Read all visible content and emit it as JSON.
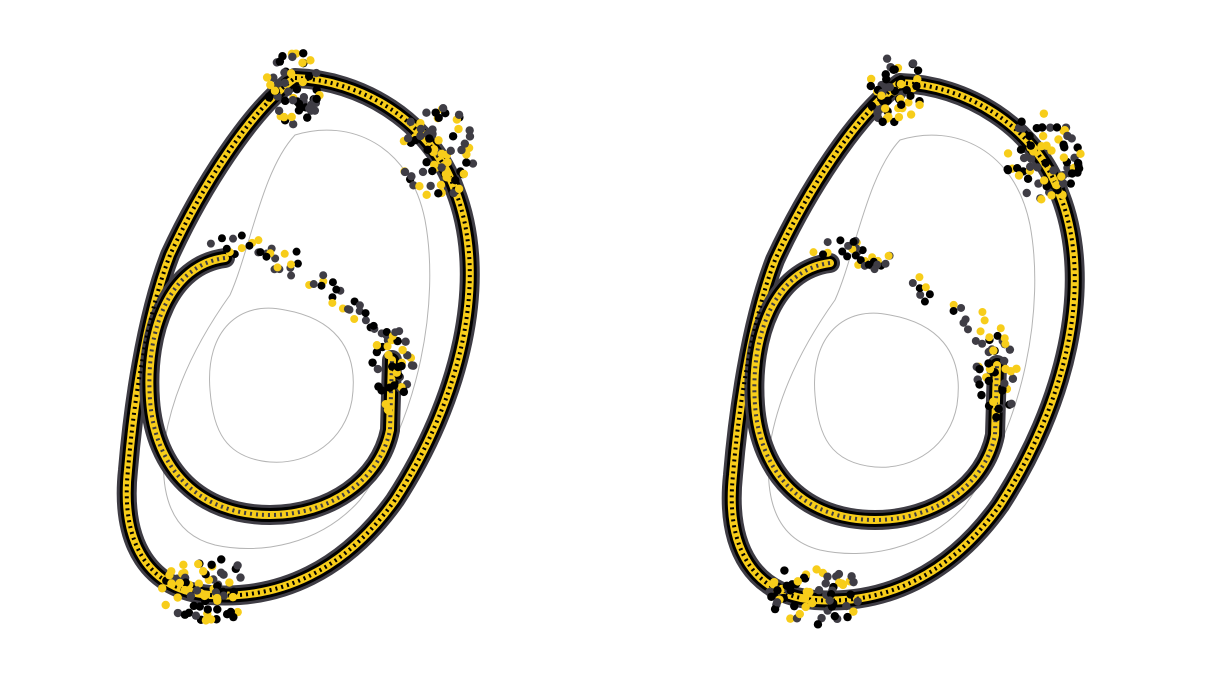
{
  "figure": {
    "panels": [
      {
        "id": "left",
        "variant": "a"
      },
      {
        "id": "right",
        "variant": "b"
      }
    ],
    "colors": {
      "black": "#000000",
      "charcoal": "#3f3d45",
      "yellow": "#f7cd1a",
      "outline": "#b4b4b4"
    }
  }
}
